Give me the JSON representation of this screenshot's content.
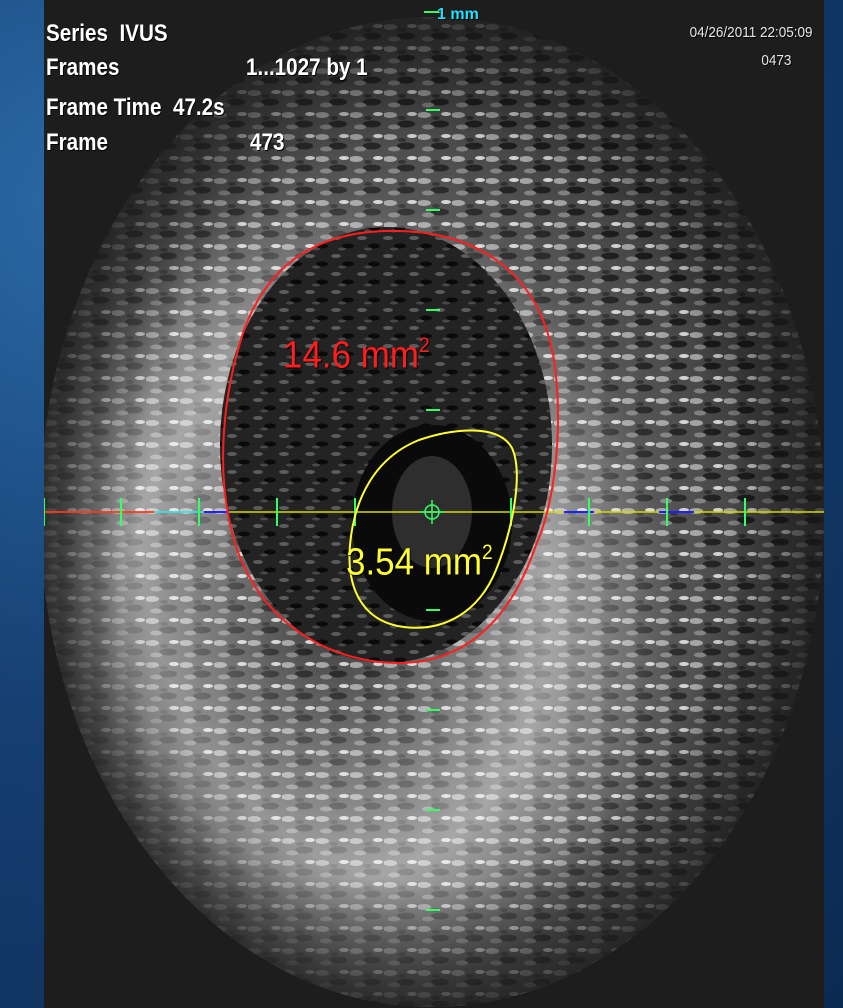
{
  "header": {
    "series_label": "Series",
    "series_value": "IVUS",
    "frames_label": "Frames",
    "frames_value": "1...1027 by 1",
    "frame_time_label": "Frame Time",
    "frame_time_value": "47.2s",
    "frame_label": "Frame",
    "frame_value": "473"
  },
  "meta": {
    "datetime": "04/26/2011 22:05:09",
    "frame_code": "0473"
  },
  "scale": {
    "label": "1 mm"
  },
  "measurements": {
    "vessel_area_value": "14.6 mm",
    "vessel_area_exp": "2",
    "lumen_area_value": "3.54 mm",
    "lumen_area_exp": "2",
    "vessel_color": "#ff1e1e",
    "lumen_color": "#ffff33"
  },
  "colors": {
    "background": "#0f3a66",
    "scale_ticks": "#22e0ff",
    "tick_green": "#33ff66"
  }
}
